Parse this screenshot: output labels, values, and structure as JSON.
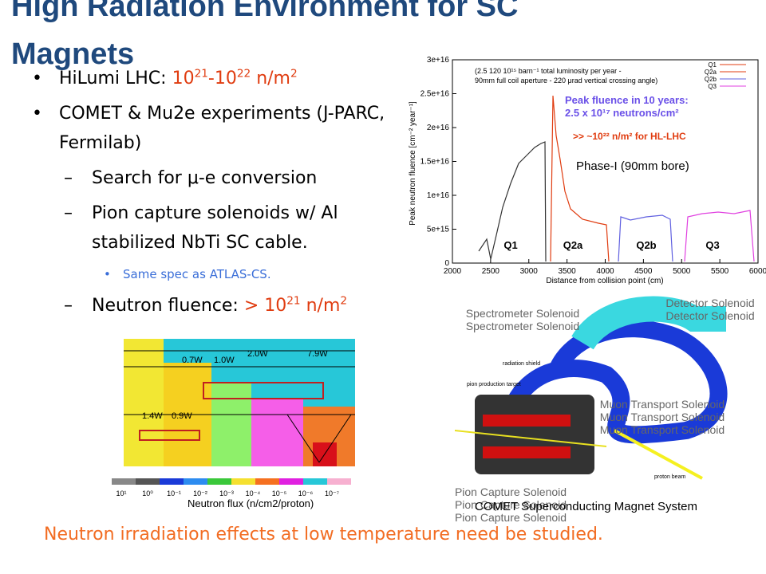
{
  "title_lines": [
    "High Radiation Environment for SC",
    "Magnets"
  ],
  "bullets": [
    {
      "level": 1,
      "parts": [
        {
          "text": "HiLumi LHC: ",
          "style": "normal"
        },
        {
          "text": "10",
          "style": "red"
        },
        {
          "text": "21",
          "style": "red-sup"
        },
        {
          "text": "-10",
          "style": "red"
        },
        {
          "text": "22",
          "style": "red-sup"
        },
        {
          "text": " n/m",
          "style": "red"
        },
        {
          "text": "2",
          "style": "red-sup"
        }
      ]
    },
    {
      "level": 1,
      "parts": [
        {
          "text": "COMET & Mu2e experiments (J-PARC, Fermilab)",
          "style": "normal"
        }
      ]
    },
    {
      "level": 2,
      "parts": [
        {
          "text": "Search for μ-e conversion",
          "style": "normal"
        }
      ]
    },
    {
      "level": 2,
      "parts": [
        {
          "text": "Pion capture solenoids w/ Al stabilized NbTi SC cable.",
          "style": "normal"
        }
      ]
    },
    {
      "level": 3,
      "parts": [
        {
          "text": "Same spec as ATLAS-CS.",
          "style": "blue"
        }
      ]
    },
    {
      "level": 2,
      "parts": [
        {
          "text": "Neutron fluence:  ",
          "style": "normal"
        },
        {
          "text": "> 10",
          "style": "red"
        },
        {
          "text": "21",
          "style": "red-sup"
        },
        {
          "text": " n/m",
          "style": "red"
        },
        {
          "text": "2",
          "style": "red-sup"
        }
      ]
    }
  ],
  "fluence_plot": {
    "note_lines": [
      "(2.5 120 10¹⁵ barn⁻¹ total luminosity per year -",
      "90mm full coil aperture - 220 μrad vertical crossing angle)"
    ],
    "legend": [
      "Q1",
      "Q2a",
      "Q2b",
      "Q3"
    ],
    "peak_lines": [
      "Peak fluence in 10 years:",
      "2.5 x 10¹⁷ neutrons/cm²"
    ],
    "hl_note": ">> ~10²² n/m² for HL-LHC",
    "phase_note": "Phase-I (90mm bore)",
    "ylabel": "Peak neutron fluence [cm⁻² year⁻¹]",
    "xlabel": "Distance from collision point (cm)",
    "region_labels": [
      "Q1",
      "Q2a",
      "Q2b",
      "Q3"
    ],
    "xlim": [
      2000,
      6000
    ],
    "xticks": [
      2000,
      2500,
      3000,
      3500,
      4000,
      4500,
      5000,
      5500,
      6000
    ],
    "ylim": [
      0,
      3e+16
    ],
    "yticks": [
      {
        "value": 0,
        "label": "0"
      },
      {
        "value": 5000000000000000.0,
        "label": "5e+15"
      },
      {
        "value": 1e+16,
        "label": "1e+16"
      },
      {
        "value": 1.5e+16,
        "label": "1.5e+16"
      },
      {
        "value": 2e+16,
        "label": "2e+16"
      },
      {
        "value": 2.5e+16,
        "label": "2.5e+16"
      },
      {
        "value": 3e+16,
        "label": "3e+16"
      }
    ]
  },
  "flux_map": {
    "power_labels": [
      "0.7W",
      "1.0W",
      "2.0W",
      "7.9W",
      "1.4W",
      "0.9W"
    ],
    "scale_labels": [
      "10¹",
      "10⁰",
      "10⁻¹",
      "10⁻²",
      "10⁻³",
      "10⁻⁴",
      "10⁻⁵",
      "10⁻⁶",
      "10⁻⁷"
    ],
    "caption": "Neutron flux (n/cm2/proton)"
  },
  "magnet_diagram": {
    "labels": [
      "Spectrometer Solenoid",
      "Detector Solenoid",
      "Muon Transport Solenoid",
      "Pion Capture Solenoid"
    ],
    "small_labels": [
      "radiation shield",
      "pion production target",
      "proton beam"
    ],
    "caption": "COMET Superconducting Magnet System"
  },
  "footer": "Neutron irradiation effects at low temperature need be studied."
}
